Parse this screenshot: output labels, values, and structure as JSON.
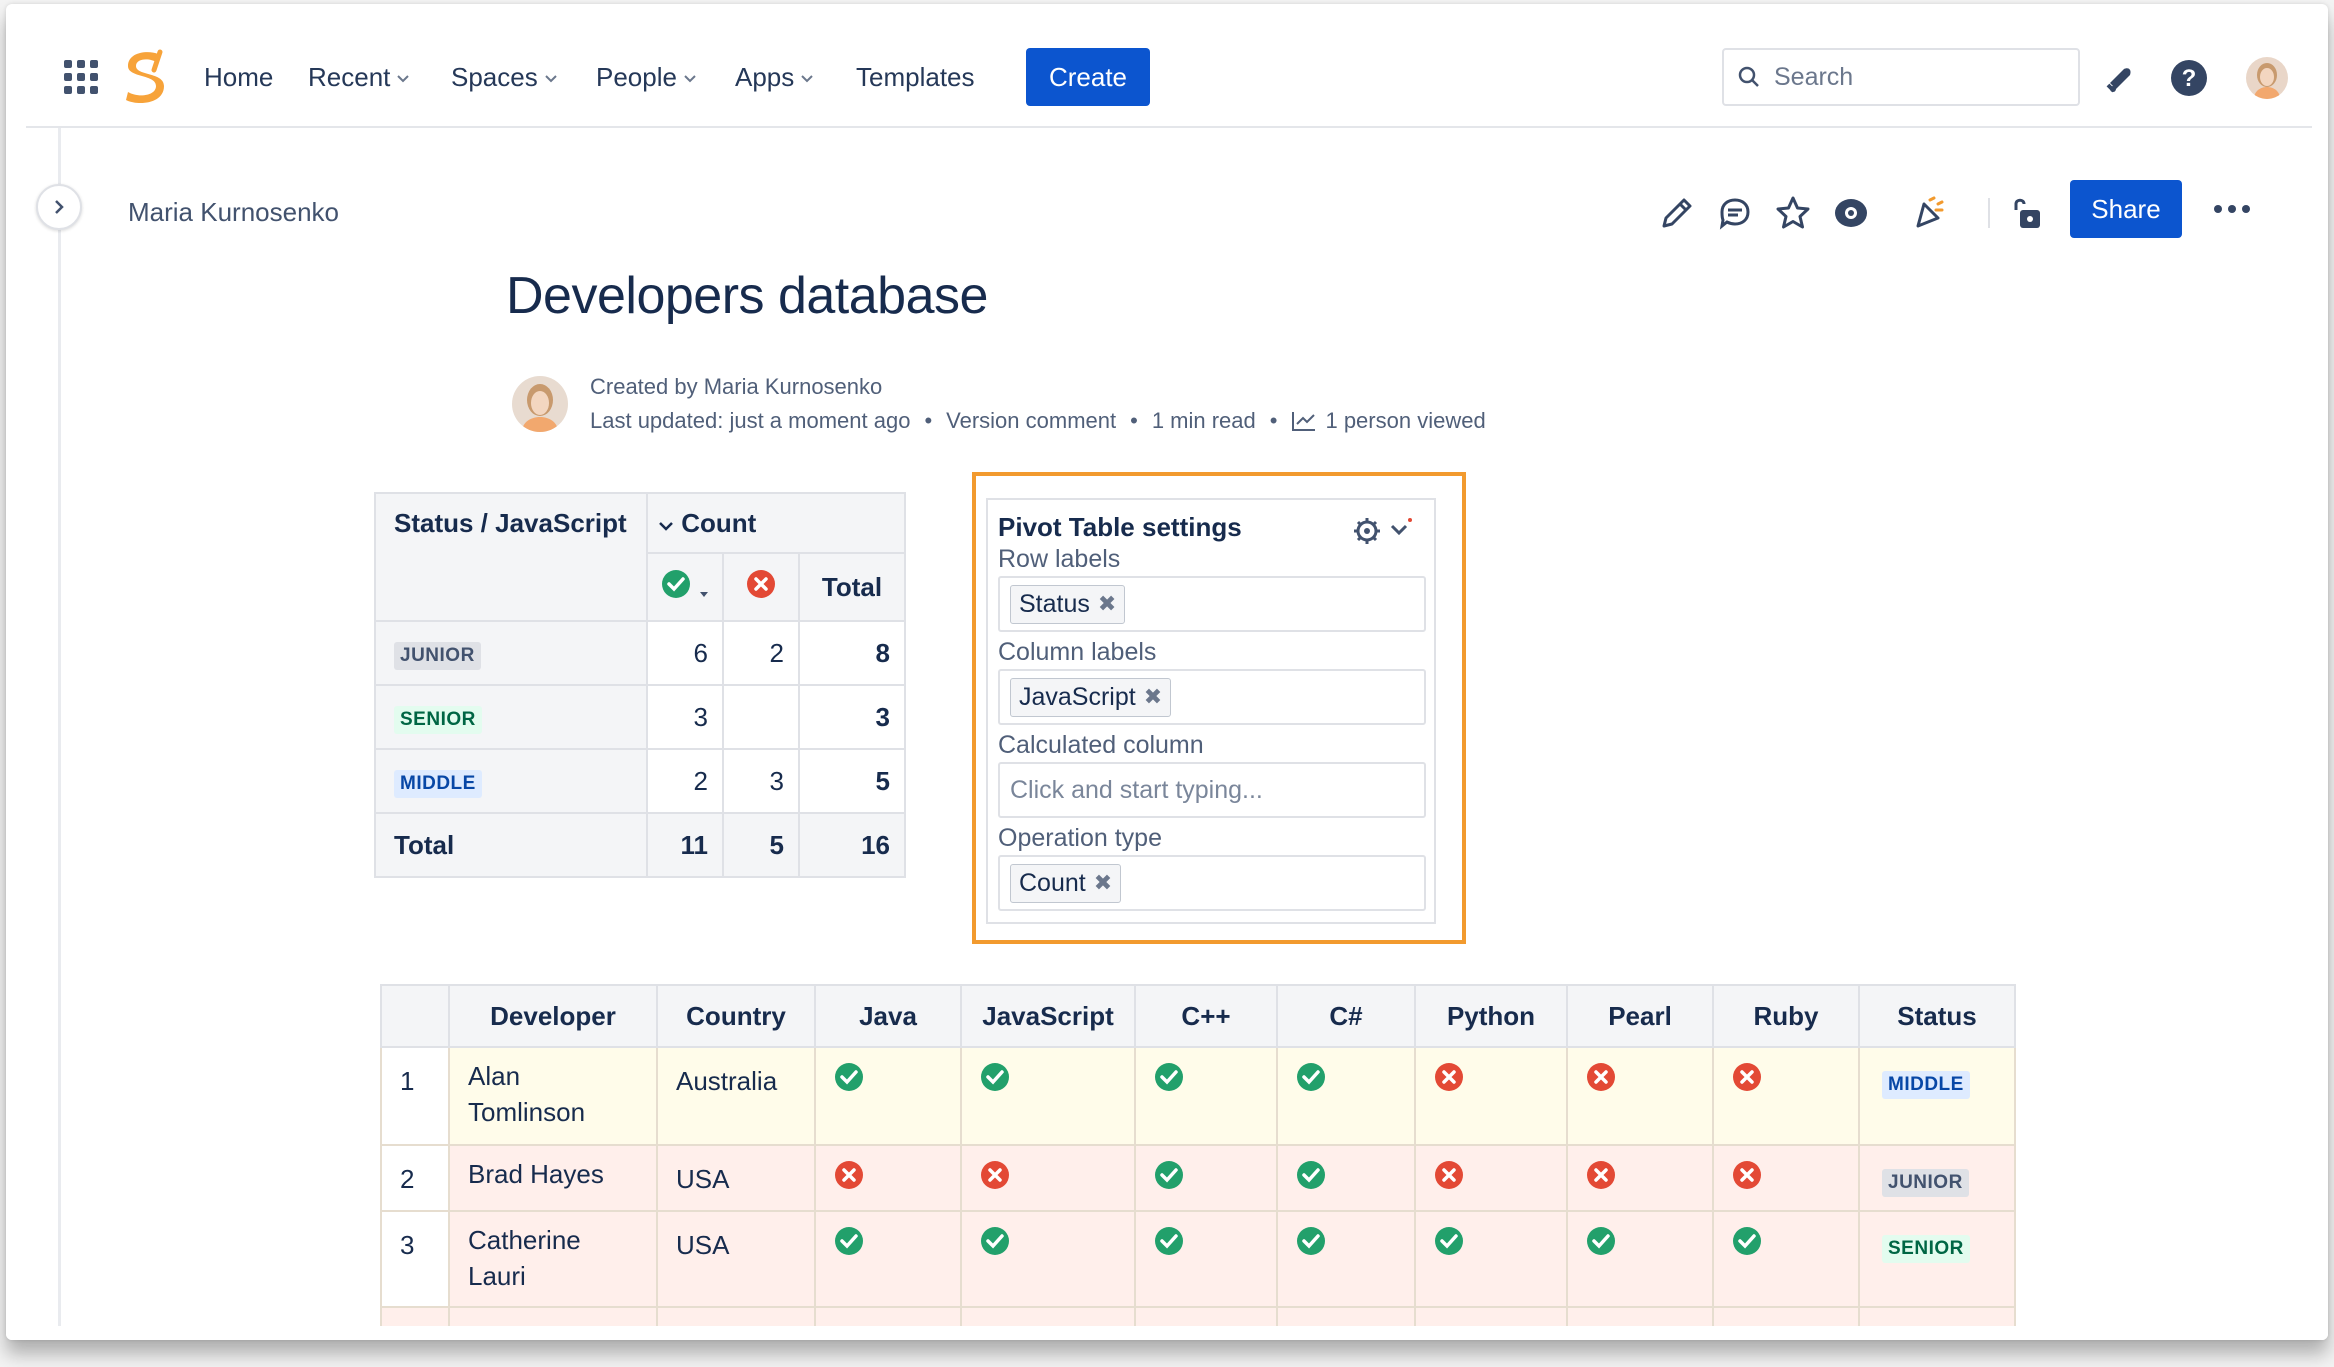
{
  "nav": {
    "items": [
      {
        "label": "Home",
        "dropdown": false
      },
      {
        "label": "Recent",
        "dropdown": true
      },
      {
        "label": "Spaces",
        "dropdown": true
      },
      {
        "label": "People",
        "dropdown": true
      },
      {
        "label": "Apps",
        "dropdown": true
      },
      {
        "label": "Templates",
        "dropdown": false
      }
    ],
    "create_label": "Create",
    "search_placeholder": "Search"
  },
  "breadcrumb": "Maria Kurnosenko",
  "actions": {
    "share_label": "Share"
  },
  "page": {
    "title": "Developers database",
    "created_by": "Created by Maria Kurnosenko",
    "last_updated": "Last updated: just a moment ago",
    "version_comment": "Version comment",
    "read_time": "1 min read",
    "viewed": "1 person viewed",
    "separator": "•"
  },
  "pivot": {
    "corner": "Status / JavaScript",
    "count_header": "Count",
    "total_header": "Total",
    "rows": [
      {
        "status": "JUNIOR",
        "badge": "junior",
        "yes": "6",
        "no": "2",
        "total": "8"
      },
      {
        "status": "SENIOR",
        "badge": "senior",
        "yes": "3",
        "no": "",
        "total": "3"
      },
      {
        "status": "MIDDLE",
        "badge": "middle",
        "yes": "2",
        "no": "3",
        "total": "5"
      }
    ],
    "total_row": {
      "label": "Total",
      "yes": "11",
      "no": "5",
      "total": "16"
    }
  },
  "settings": {
    "title": "Pivot Table settings",
    "row_labels_title": "Row labels",
    "row_labels_value": "Status",
    "column_labels_title": "Column labels",
    "column_labels_value": "JavaScript",
    "calculated_title": "Calculated column",
    "calculated_placeholder": "Click and start typing...",
    "operation_title": "Operation type",
    "operation_value": "Count",
    "remove_glyph": "✖"
  },
  "dev_table": {
    "headers": [
      "Developer",
      "Country",
      "Java",
      "JavaScript",
      "C++",
      "C#",
      "Python",
      "Pearl",
      "Ruby",
      "Status"
    ],
    "rows": [
      {
        "num": "1",
        "name_line1": "Alan",
        "name_line2": "Tomlinson",
        "country": "Australia",
        "skills": [
          true,
          true,
          true,
          true,
          false,
          false,
          false
        ],
        "status": "MIDDLE",
        "badge": "middle",
        "color": "yellow"
      },
      {
        "num": "2",
        "name_line1": "Brad Hayes",
        "name_line2": "",
        "country": "USA",
        "skills": [
          false,
          false,
          true,
          true,
          false,
          false,
          false
        ],
        "status": "JUNIOR",
        "badge": "junior",
        "color": "pink"
      },
      {
        "num": "3",
        "name_line1": "Catherine",
        "name_line2": "Lauri",
        "country": "USA",
        "skills": [
          true,
          true,
          true,
          true,
          true,
          true,
          true
        ],
        "status": "SENIOR",
        "badge": "senior",
        "color": "pink"
      }
    ]
  },
  "colors": {
    "primary": "#0c55cf",
    "check_green": "#22a06b",
    "cross_red": "#e34935",
    "highlight_orange": "#f29a2e",
    "logo_orange": "#f7a33a"
  }
}
